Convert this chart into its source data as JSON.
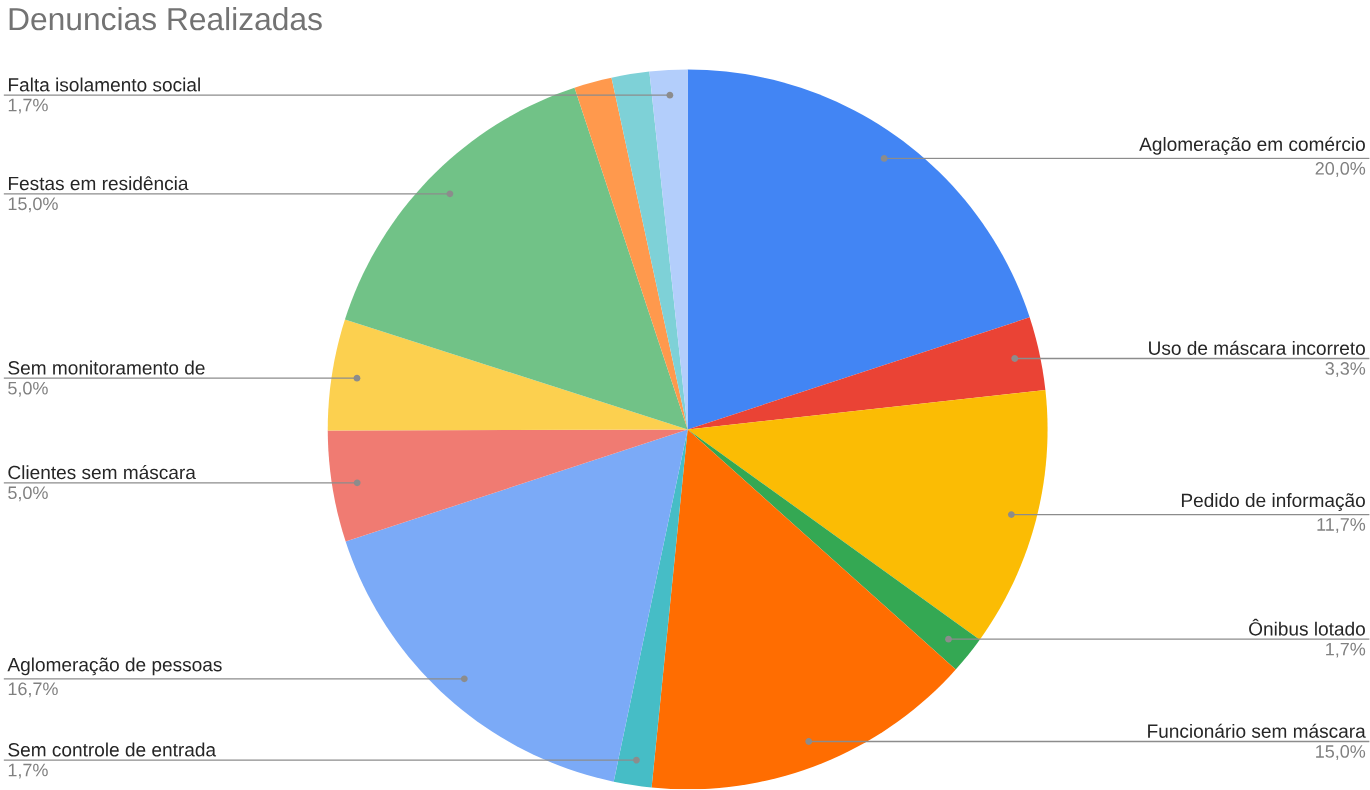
{
  "chart_data": {
    "type": "pie",
    "title": "Denuncias Realizadas",
    "categories": [
      "Aglomeração em comércio",
      "Uso de máscara incorreto",
      "Pedido de informação",
      "Ônibus lotado",
      "Funcionário sem máscara",
      "Sem controle de entrada",
      "Aglomeração de pessoas",
      "Clientes sem máscara",
      "Sem monitoramento de",
      "Festas em residência",
      null,
      null,
      "Falta isolamento social"
    ],
    "values": [
      20.0,
      3.3,
      11.7,
      1.7,
      15.0,
      1.7,
      16.7,
      5.0,
      5.0,
      15.0,
      1.7,
      1.7,
      1.7
    ],
    "value_labels": [
      "20,0%",
      "3,3%",
      "11,7%",
      "1,7%",
      "15,0%",
      "1,7%",
      "16,7%",
      "5,0%",
      "5,0%",
      "15,0%",
      null,
      null,
      "1,7%"
    ],
    "colors": [
      "#4285f4",
      "#ea4335",
      "#fbbc04",
      "#34a853",
      "#ff6d01",
      "#46bdc6",
      "#7baaf7",
      "#f07b72",
      "#fcd04f",
      "#71c287",
      "#ff994d",
      "#7ed1d7",
      "#b3cefb"
    ]
  }
}
